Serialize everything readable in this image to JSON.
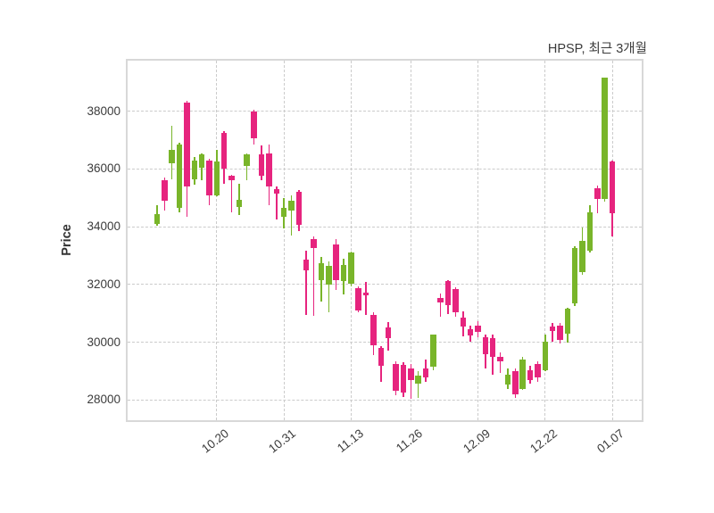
{
  "title": "HPSP, 최근 3개월",
  "ylabel": "Price",
  "colors": {
    "up": "#79b52a",
    "down": "#e6247e",
    "grid": "#cbcbcb",
    "plot_border": "#d8d8d8",
    "text": "#3b3b3b",
    "background": "#ffffff"
  },
  "chart_data": {
    "type": "candlestick",
    "title": "HPSP, 최근 3개월",
    "ylabel": "Price",
    "grid": "dashed",
    "ylim": [
      27300,
      39750
    ],
    "y_ticks": [
      "28000",
      "30000",
      "32000",
      "34000",
      "36000",
      "38000"
    ],
    "y_tick_values": [
      28000,
      30000,
      32000,
      34000,
      36000,
      38000
    ],
    "x_tick_labels": [
      "10.20",
      "10.31",
      "11.13",
      "11.26",
      "12.09",
      "12.22",
      "01.07"
    ],
    "x_tick_indices": [
      8,
      17,
      26,
      34,
      43,
      52,
      61
    ],
    "ohlc_order": [
      "open",
      "high",
      "low",
      "close"
    ],
    "candles": [
      [
        34100,
        34750,
        34050,
        34450
      ],
      [
        35600,
        35700,
        34550,
        34900
      ],
      [
        36200,
        37500,
        35650,
        36650
      ],
      [
        34650,
        36900,
        34500,
        36850
      ],
      [
        38300,
        38350,
        34350,
        35400
      ],
      [
        35650,
        36400,
        35450,
        36300
      ],
      [
        36050,
        36550,
        35600,
        36500
      ],
      [
        36300,
        36350,
        34750,
        35100
      ],
      [
        35100,
        36650,
        35050,
        36250
      ],
      [
        37250,
        37300,
        35500,
        36000
      ],
      [
        35750,
        35800,
        34500,
        35600
      ],
      [
        34670,
        35500,
        34400,
        34940
      ],
      [
        36100,
        36550,
        35600,
        36500
      ],
      [
        38000,
        38050,
        36850,
        37050
      ],
      [
        36500,
        36800,
        35600,
        35750
      ],
      [
        36550,
        36850,
        34750,
        35400
      ],
      [
        35300,
        35400,
        34250,
        35150
      ],
      [
        34350,
        35000,
        33950,
        34650
      ],
      [
        34550,
        35100,
        33700,
        34900
      ],
      [
        35200,
        35270,
        33850,
        34050
      ],
      [
        32850,
        33180,
        30950,
        32490
      ],
      [
        33570,
        33670,
        30900,
        33260
      ],
      [
        32150,
        32950,
        31400,
        32750
      ],
      [
        32000,
        32800,
        31050,
        32650
      ],
      [
        33400,
        33570,
        31820,
        32150
      ],
      [
        32130,
        32900,
        31660,
        32690
      ],
      [
        32020,
        33150,
        31920,
        33100
      ],
      [
        31870,
        31920,
        31050,
        31100
      ],
      [
        31720,
        32100,
        30950,
        31620
      ],
      [
        30940,
        31050,
        29550,
        29910
      ],
      [
        29810,
        29860,
        28630,
        29190
      ],
      [
        30500,
        30700,
        29700,
        30150
      ],
      [
        29250,
        29350,
        28160,
        28320
      ],
      [
        29200,
        29300,
        28100,
        28270
      ],
      [
        29100,
        29250,
        28050,
        28700
      ],
      [
        28580,
        28990,
        28060,
        28830
      ],
      [
        29090,
        29400,
        28630,
        28780
      ],
      [
        29140,
        30280,
        29040,
        30270
      ],
      [
        31540,
        31700,
        30870,
        31390
      ],
      [
        32110,
        32160,
        30980,
        31290
      ],
      [
        31850,
        31900,
        30870,
        31030
      ],
      [
        30840,
        31080,
        30200,
        30530
      ],
      [
        30460,
        30580,
        30020,
        30250
      ],
      [
        30560,
        30740,
        30170,
        30350
      ],
      [
        30170,
        30270,
        29090,
        29600
      ],
      [
        30140,
        30270,
        28880,
        29500
      ],
      [
        29500,
        29660,
        28940,
        29350
      ],
      [
        28520,
        29090,
        28370,
        28880
      ],
      [
        28990,
        29090,
        28060,
        28210
      ],
      [
        28370,
        29500,
        28350,
        29400
      ],
      [
        29040,
        29190,
        28570,
        28680
      ],
      [
        29250,
        29350,
        28630,
        28780
      ],
      [
        29040,
        30270,
        28990,
        30020
      ],
      [
        30530,
        30680,
        30020,
        30380
      ],
      [
        30580,
        30680,
        29960,
        30070
      ],
      [
        30300,
        31200,
        30000,
        31150
      ],
      [
        31350,
        33310,
        31250,
        33260
      ],
      [
        32430,
        33980,
        32330,
        33520
      ],
      [
        33160,
        34750,
        33100,
        34500
      ],
      [
        35320,
        35420,
        34470,
        34960
      ],
      [
        34960,
        39150,
        34860,
        39150
      ],
      [
        36250,
        36300,
        33670,
        34470
      ]
    ]
  }
}
